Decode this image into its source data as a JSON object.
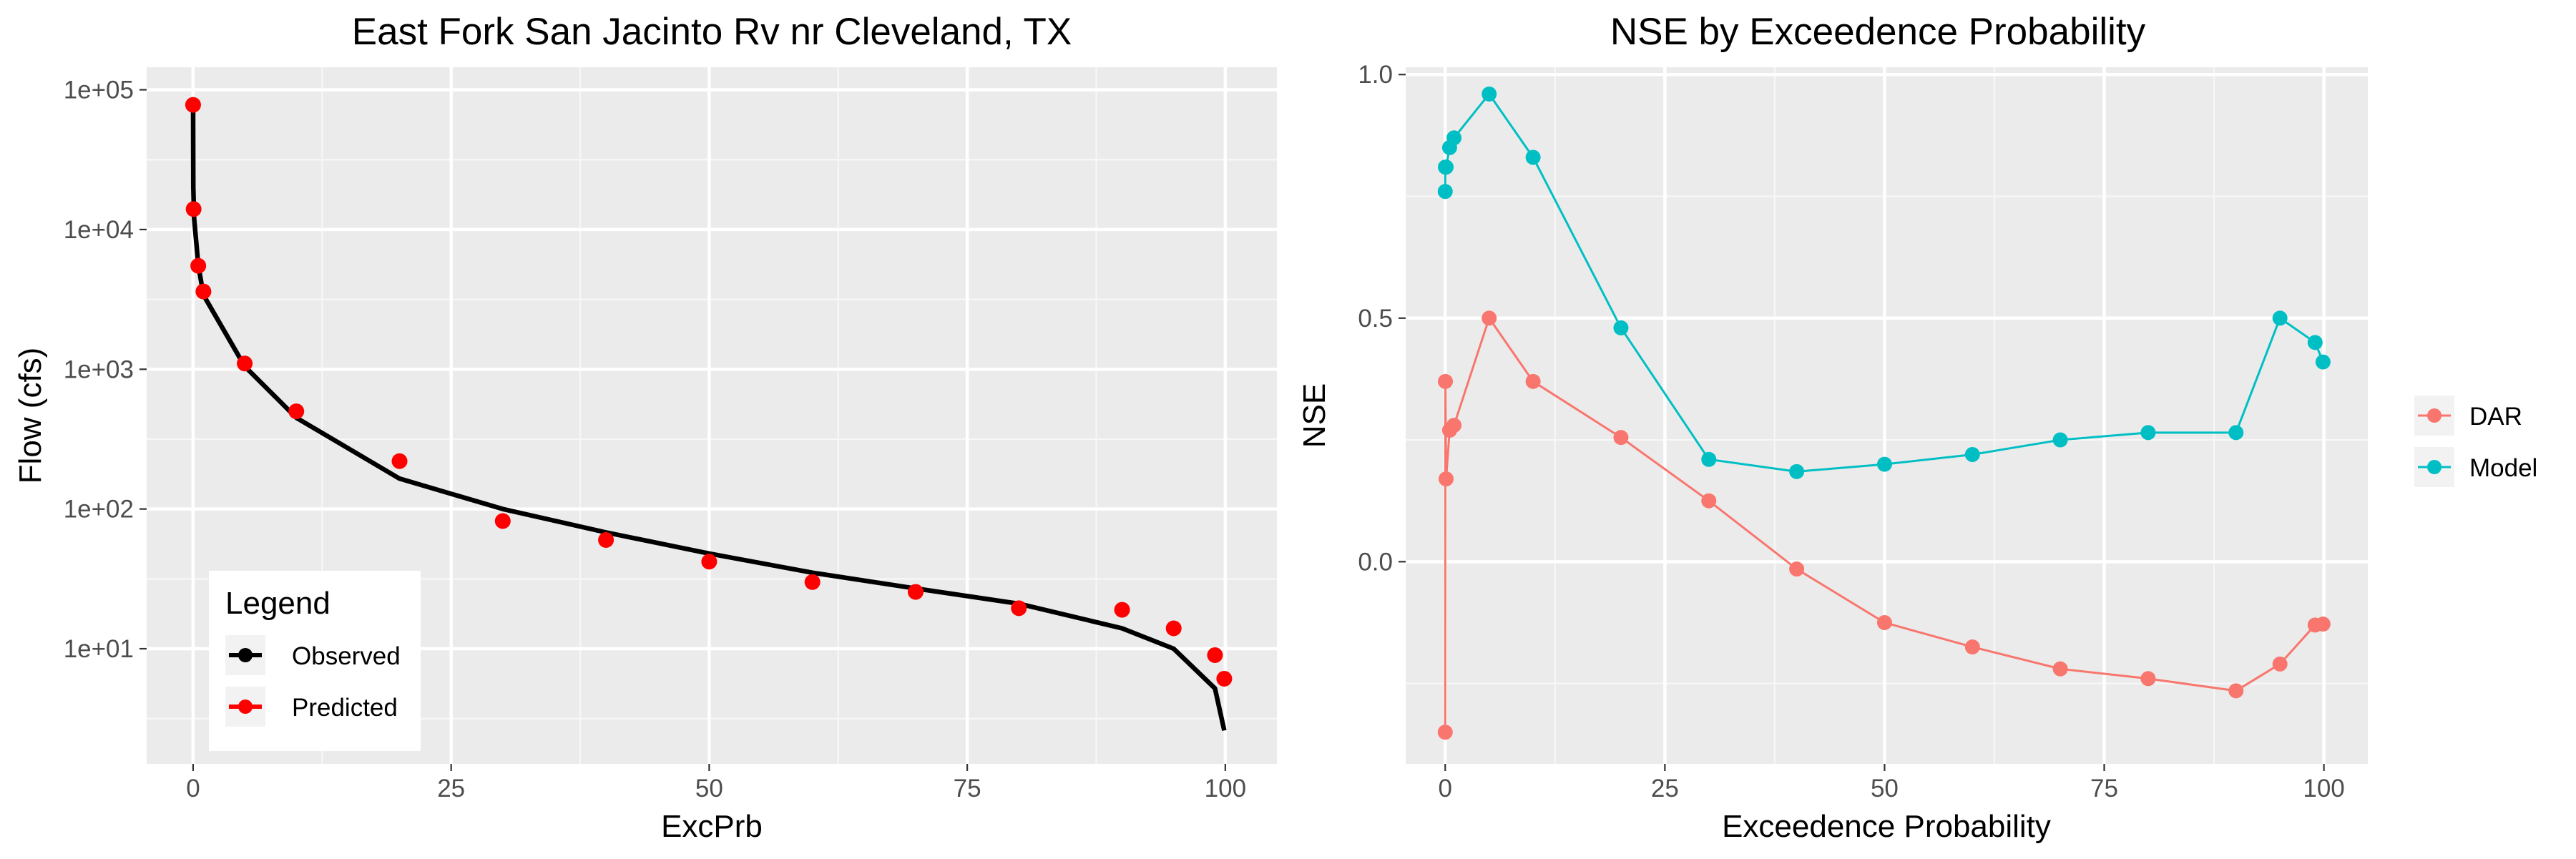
{
  "chart_data": [
    {
      "type": "line",
      "title": "East Fork San Jacinto Rv nr Cleveland, TX",
      "xlabel": "ExcPrb",
      "ylabel": "Flow (cfs)",
      "xlim": [
        -4.5,
        105
      ],
      "ylim": [
        1.5,
        145000
      ],
      "y_scale": "log10",
      "grid": true,
      "x_ticks": [
        0,
        25,
        50,
        75,
        100
      ],
      "x_tick_labels": [
        "0",
        "25",
        "50",
        "75",
        "100"
      ],
      "y_ticks": [
        10,
        100,
        1000,
        10000,
        100000
      ],
      "y_tick_labels": [
        "1e+01",
        "1e+02",
        "1e+03",
        "1e+04",
        "1e+05"
      ],
      "legend": {
        "title": "Legend",
        "position": "bottom-left",
        "entries": [
          {
            "label": "Observed",
            "color": "#000000"
          },
          {
            "label": "Predicted",
            "color": "#ff0000"
          }
        ]
      },
      "series": [
        {
          "name": "Observed",
          "kind": "line",
          "color": "#000000",
          "x": [
            0,
            0.02,
            0.1,
            0.5,
            1,
            5,
            10,
            20,
            30,
            40,
            50,
            60,
            70,
            80,
            90,
            95,
            99,
            99.9
          ],
          "y": [
            78000,
            20000,
            12000,
            5600,
            3400,
            1050,
            450,
            165,
            100,
            68,
            48,
            35,
            27,
            21,
            14,
            10,
            5.2,
            2.6
          ]
        },
        {
          "name": "Predicted",
          "kind": "points",
          "color": "#ff0000",
          "x": [
            0,
            0.05,
            0.5,
            1,
            5,
            10,
            20,
            30,
            40,
            50,
            60,
            70,
            80,
            90,
            95,
            99,
            99.9
          ],
          "y": [
            78000,
            14000,
            5500,
            3600,
            1100,
            500,
            220,
            82,
            60,
            42,
            30,
            25.5,
            19.5,
            19,
            14,
            9,
            6.1
          ]
        }
      ]
    },
    {
      "type": "line",
      "title": "NSE by Exceedence Probability",
      "xlabel": "Exceedence Probability",
      "ylabel": "NSE",
      "xlim": [
        -4.5,
        105
      ],
      "ylim": [
        -0.415,
        1.015
      ],
      "grid": true,
      "x_ticks": [
        0,
        25,
        50,
        75,
        100
      ],
      "x_tick_labels": [
        "0",
        "25",
        "50",
        "75",
        "100"
      ],
      "y_ticks": [
        0.0,
        0.5,
        1.0
      ],
      "y_tick_labels": [
        "0.0",
        "0.5",
        "1.0"
      ],
      "legend": {
        "position": "right",
        "entries": [
          {
            "label": "DAR",
            "color": "#f8766d"
          },
          {
            "label": "Model",
            "color": "#00bfc4"
          }
        ]
      },
      "series": [
        {
          "name": "DAR",
          "color": "#f8766d",
          "x": [
            0,
            0.02,
            0.1,
            0.5,
            1,
            5,
            10,
            20,
            30,
            40,
            50,
            60,
            70,
            80,
            90,
            95,
            99,
            99.9
          ],
          "y": [
            -0.35,
            0.37,
            0.17,
            0.27,
            0.28,
            0.5,
            0.37,
            0.255,
            0.125,
            -0.015,
            -0.125,
            -0.175,
            -0.22,
            -0.24,
            -0.265,
            -0.21,
            -0.13,
            -0.128
          ]
        },
        {
          "name": "Model",
          "color": "#00bfc4",
          "x": [
            0,
            0.02,
            0.1,
            0.5,
            1,
            5,
            10,
            20,
            30,
            40,
            50,
            60,
            70,
            80,
            90,
            95,
            99,
            99.9
          ],
          "y": [
            0.76,
            0.81,
            0.81,
            0.85,
            0.87,
            0.96,
            0.83,
            0.48,
            0.21,
            0.185,
            0.2,
            0.22,
            0.25,
            0.265,
            0.265,
            0.5,
            0.45,
            0.41
          ]
        }
      ]
    }
  ]
}
